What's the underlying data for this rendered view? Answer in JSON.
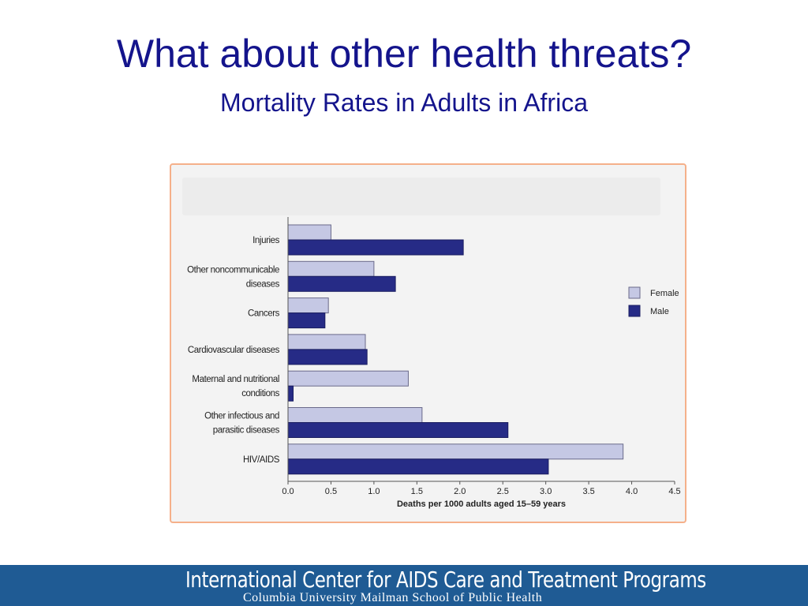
{
  "title": "What about other health threats?",
  "subtitle": "Mortality Rates in Adults in Africa",
  "footer": {
    "organization": "International Center for AIDS Care and Treatment Programs",
    "school": "Columbia University Mailman School of Public Health"
  },
  "colors": {
    "female": "#c5c8e4",
    "male": "#262b86",
    "title": "#14148c",
    "frame_border": "#f5b08a",
    "footer_bg": "#1f5b94"
  },
  "chart_data": {
    "type": "bar",
    "orientation": "horizontal",
    "categories": [
      [
        "Injuries"
      ],
      [
        "Other noncommunicable",
        "diseases"
      ],
      [
        "Cancers"
      ],
      [
        "Cardiovascular diseases"
      ],
      [
        "Maternal and nutritional",
        "conditions"
      ],
      [
        "Other infectious and",
        "parasitic diseases"
      ],
      [
        "HIV/AIDS"
      ]
    ],
    "series": [
      {
        "name": "Female",
        "values": [
          0.5,
          1.0,
          0.47,
          0.9,
          1.4,
          1.56,
          3.9
        ]
      },
      {
        "name": "Male",
        "values": [
          2.04,
          1.25,
          0.43,
          0.92,
          0.06,
          2.56,
          3.03
        ]
      }
    ],
    "xlabel": "Deaths per 1000 adults aged 15–59 years",
    "xlim": [
      0,
      4.5
    ],
    "xticks": [
      "0.0",
      "0.5",
      "1.0",
      "1.5",
      "2.0",
      "2.5",
      "3.0",
      "3.5",
      "4.0",
      "4.5"
    ],
    "legend_position": "right",
    "grid": false
  }
}
